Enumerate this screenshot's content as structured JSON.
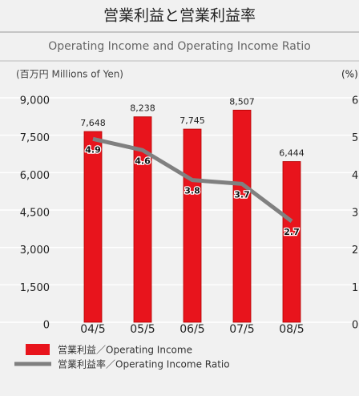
{
  "chart_data": {
    "type": "bar_line",
    "title": "営業利益と営業利益率",
    "subtitle": "Operating Income and Operating Income Ratio",
    "y_label": "(百万円 Millions of Yen)",
    "y2_label": "(%)",
    "categories": [
      "04/5",
      "05/5",
      "06/5",
      "07/5",
      "08/5"
    ],
    "series": [
      {
        "name": "営業利益／Operating Income",
        "color": "#e8141c",
        "values": [
          7648,
          8238,
          7745,
          8507,
          6444
        ],
        "value_labels": [
          "7,648",
          "8,238",
          "7,745",
          "8,507",
          "6,444"
        ]
      },
      {
        "name": "営業利益率／Operating Income Ratio",
        "color": "#808080",
        "values": [
          4.9,
          4.6,
          3.8,
          3.7,
          2.7
        ],
        "axis": "y2"
      }
    ],
    "ylim": [
      0,
      9000
    ],
    "yticks": [
      0,
      {
        "value": 1500,
        "label": "1,500"
      },
      {
        "value": 3000,
        "label": "3,000"
      },
      {
        "value": 4500,
        "label": "4,500"
      },
      {
        "value": 6000,
        "label": "6,000"
      },
      {
        "value": 7500,
        "label": "7,500"
      },
      {
        "value": 9000,
        "label": "9,000"
      }
    ],
    "y2lim": [
      0,
      6
    ],
    "y2ticks": [
      0,
      1,
      2,
      3,
      4,
      5,
      6
    ],
    "grid": true
  }
}
